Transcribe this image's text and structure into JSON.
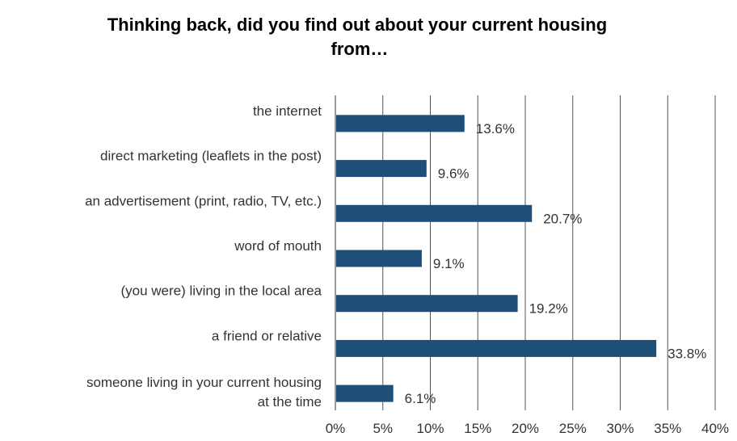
{
  "chart_data": {
    "type": "bar",
    "orientation": "horizontal",
    "title": "Thinking back, did you find out about your current housing from…",
    "categories": [
      "the internet",
      "direct marketing (leaflets in the post)",
      "an advertisement (print, radio, TV, etc.)",
      "word of mouth",
      "(you were) living in the local area",
      "a friend or relative",
      "someone living in your current housing at the time"
    ],
    "category_lines": [
      [
        "the internet"
      ],
      [
        "direct marketing (leaflets in the post)"
      ],
      [
        "an advertisement (print, radio, TV, etc.)"
      ],
      [
        "word of mouth"
      ],
      [
        "(you were) living in the local area"
      ],
      [
        "a friend or relative"
      ],
      [
        "someone living in your current housing",
        "at the time"
      ]
    ],
    "values": [
      13.6,
      9.6,
      20.7,
      9.1,
      19.2,
      33.8,
      6.1
    ],
    "value_labels": [
      "13.6%",
      "9.6%",
      "20.7%",
      "9.1%",
      "19.2%",
      "33.8%",
      "6.1%"
    ],
    "xlim": [
      0,
      40
    ],
    "x_ticks": [
      0,
      5,
      10,
      15,
      20,
      25,
      30,
      35,
      40
    ],
    "x_tick_labels": [
      "0%",
      "5%",
      "10%",
      "15%",
      "20%",
      "25%",
      "30%",
      "35%",
      "40%"
    ],
    "xlabel": "",
    "ylabel": "",
    "grid": true,
    "legend": "none",
    "bar_color": "#1f4e79"
  }
}
